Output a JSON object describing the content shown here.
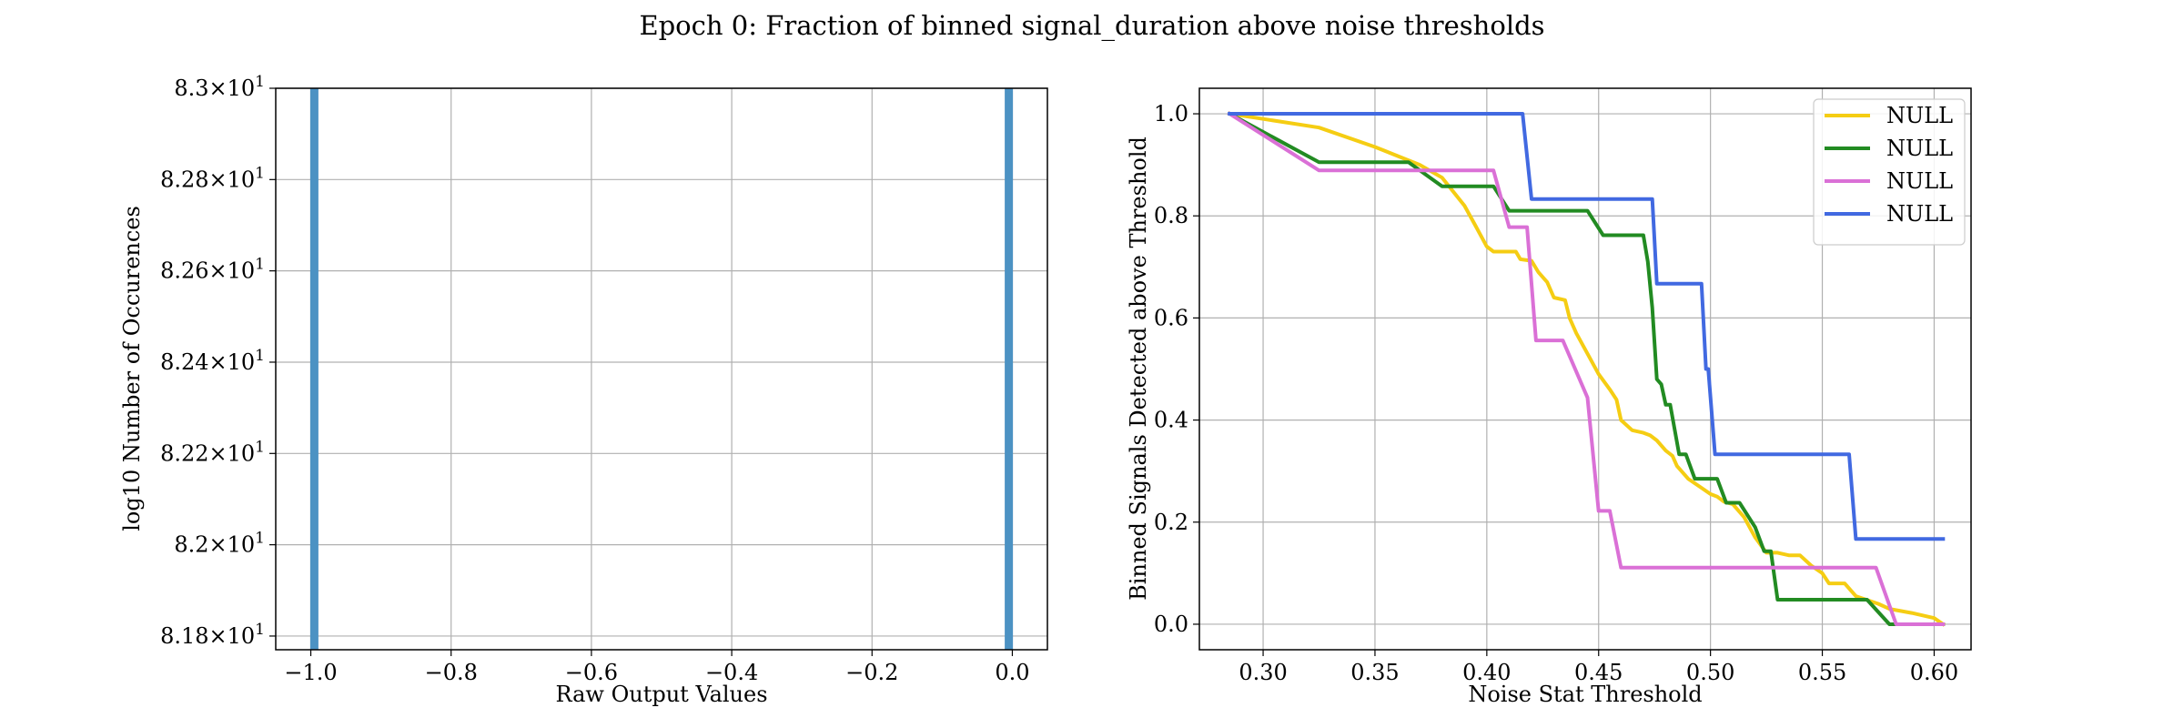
{
  "figure": {
    "title": "Epoch 0: Fraction of binned signal_duration above noise thresholds"
  },
  "chart_data": [
    {
      "type": "bar",
      "title": "",
      "xlabel": "Raw Output Values",
      "ylabel": "log10 Number of Occurences",
      "yscale": "log",
      "xlim": [
        -1.05,
        0.05
      ],
      "ylim": [
        81.77,
        83.0
      ],
      "grid": true,
      "x_ticks": [
        {
          "value": -1.0,
          "label": "−1.0"
        },
        {
          "value": -0.8,
          "label": "−0.8"
        },
        {
          "value": -0.6,
          "label": "−0.6"
        },
        {
          "value": -0.4,
          "label": "−0.4"
        },
        {
          "value": -0.2,
          "label": "−0.2"
        },
        {
          "value": 0.0,
          "label": "0.0"
        }
      ],
      "y_ticks": [
        {
          "value": 81.8,
          "mantissa": "8.18",
          "base": "10",
          "exp": "1"
        },
        {
          "value": 82.0,
          "mantissa": "8.2",
          "base": "10",
          "exp": "1"
        },
        {
          "value": 82.2,
          "mantissa": "8.22",
          "base": "10",
          "exp": "1"
        },
        {
          "value": 82.4,
          "mantissa": "8.24",
          "base": "10",
          "exp": "1"
        },
        {
          "value": 82.6,
          "mantissa": "8.26",
          "base": "10",
          "exp": "1"
        },
        {
          "value": 82.8,
          "mantissa": "8.28",
          "base": "10",
          "exp": "1"
        },
        {
          "value": 83.0,
          "mantissa": "8.3",
          "base": "10",
          "exp": "1"
        }
      ],
      "bars": [
        {
          "x": -0.995,
          "value": 83
        },
        {
          "x": -0.005,
          "value": 83
        }
      ],
      "bar_color": "#4c92c3"
    },
    {
      "type": "line",
      "title": "",
      "xlabel": "Noise Stat Threshold",
      "ylabel": "Binned Signals Detected above Threshold",
      "xlim": [
        0.2715,
        0.6165
      ],
      "ylim": [
        -0.05,
        1.05
      ],
      "grid": true,
      "legend": "top-right",
      "x_ticks": [
        {
          "value": 0.3,
          "label": "0.30"
        },
        {
          "value": 0.35,
          "label": "0.35"
        },
        {
          "value": 0.4,
          "label": "0.40"
        },
        {
          "value": 0.45,
          "label": "0.45"
        },
        {
          "value": 0.5,
          "label": "0.50"
        },
        {
          "value": 0.55,
          "label": "0.55"
        },
        {
          "value": 0.6,
          "label": "0.60"
        }
      ],
      "y_ticks": [
        {
          "value": 0.0,
          "label": "0.0"
        },
        {
          "value": 0.2,
          "label": "0.2"
        },
        {
          "value": 0.4,
          "label": "0.4"
        },
        {
          "value": 0.6,
          "label": "0.6"
        },
        {
          "value": 0.8,
          "label": "0.8"
        },
        {
          "value": 1.0,
          "label": "1.0"
        }
      ],
      "series": [
        {
          "name": "NULL",
          "color": "#f5cd13",
          "points": [
            [
              0.285,
              1.0
            ],
            [
              0.3,
              0.99
            ],
            [
              0.325,
              0.973
            ],
            [
              0.35,
              0.935
            ],
            [
              0.37,
              0.9
            ],
            [
              0.38,
              0.875
            ],
            [
              0.39,
              0.82
            ],
            [
              0.395,
              0.78
            ],
            [
              0.4,
              0.74
            ],
            [
              0.403,
              0.73
            ],
            [
              0.413,
              0.73
            ],
            [
              0.415,
              0.715
            ],
            [
              0.42,
              0.712
            ],
            [
              0.423,
              0.69
            ],
            [
              0.427,
              0.67
            ],
            [
              0.43,
              0.64
            ],
            [
              0.435,
              0.635
            ],
            [
              0.437,
              0.6
            ],
            [
              0.44,
              0.57
            ],
            [
              0.445,
              0.53
            ],
            [
              0.45,
              0.49
            ],
            [
              0.455,
              0.46
            ],
            [
              0.458,
              0.44
            ],
            [
              0.46,
              0.4
            ],
            [
              0.465,
              0.38
            ],
            [
              0.47,
              0.375
            ],
            [
              0.473,
              0.37
            ],
            [
              0.476,
              0.36
            ],
            [
              0.48,
              0.34
            ],
            [
              0.483,
              0.33
            ],
            [
              0.485,
              0.31
            ],
            [
              0.49,
              0.285
            ],
            [
              0.495,
              0.27
            ],
            [
              0.5,
              0.255
            ],
            [
              0.503,
              0.25
            ],
            [
              0.506,
              0.24
            ],
            [
              0.51,
              0.235
            ],
            [
              0.515,
              0.21
            ],
            [
              0.52,
              0.17
            ],
            [
              0.525,
              0.14
            ],
            [
              0.53,
              0.14
            ],
            [
              0.535,
              0.135
            ],
            [
              0.54,
              0.135
            ],
            [
              0.545,
              0.115
            ],
            [
              0.55,
              0.1
            ],
            [
              0.553,
              0.08
            ],
            [
              0.56,
              0.08
            ],
            [
              0.565,
              0.055
            ],
            [
              0.575,
              0.04
            ],
            [
              0.58,
              0.03
            ],
            [
              0.59,
              0.022
            ],
            [
              0.6,
              0.012
            ],
            [
              0.604,
              0.0
            ]
          ]
        },
        {
          "name": "NULL",
          "color": "#228b22",
          "points": [
            [
              0.285,
              1.0
            ],
            [
              0.325,
              0.905
            ],
            [
              0.365,
              0.905
            ],
            [
              0.38,
              0.858
            ],
            [
              0.403,
              0.858
            ],
            [
              0.41,
              0.81
            ],
            [
              0.445,
              0.81
            ],
            [
              0.452,
              0.762
            ],
            [
              0.47,
              0.762
            ],
            [
              0.472,
              0.71
            ],
            [
              0.474,
              0.62
            ],
            [
              0.476,
              0.48
            ],
            [
              0.478,
              0.47
            ],
            [
              0.48,
              0.43
            ],
            [
              0.482,
              0.43
            ],
            [
              0.486,
              0.333
            ],
            [
              0.489,
              0.333
            ],
            [
              0.493,
              0.285
            ],
            [
              0.503,
              0.285
            ],
            [
              0.507,
              0.238
            ],
            [
              0.513,
              0.238
            ],
            [
              0.52,
              0.19
            ],
            [
              0.524,
              0.143
            ],
            [
              0.527,
              0.143
            ],
            [
              0.53,
              0.048
            ],
            [
              0.57,
              0.048
            ],
            [
              0.58,
              0.0
            ],
            [
              0.604,
              0.0
            ]
          ]
        },
        {
          "name": "NULL",
          "color": "#da70d6",
          "points": [
            [
              0.285,
              1.0
            ],
            [
              0.325,
              0.889
            ],
            [
              0.403,
              0.889
            ],
            [
              0.41,
              0.778
            ],
            [
              0.418,
              0.778
            ],
            [
              0.422,
              0.556
            ],
            [
              0.434,
              0.556
            ],
            [
              0.445,
              0.444
            ],
            [
              0.45,
              0.222
            ],
            [
              0.455,
              0.222
            ],
            [
              0.46,
              0.111
            ],
            [
              0.574,
              0.111
            ],
            [
              0.583,
              0.0
            ],
            [
              0.604,
              0.0
            ]
          ]
        },
        {
          "name": "NULL",
          "color": "#4169e1",
          "points": [
            [
              0.285,
              1.0
            ],
            [
              0.416,
              1.0
            ],
            [
              0.42,
              0.833
            ],
            [
              0.474,
              0.833
            ],
            [
              0.476,
              0.667
            ],
            [
              0.496,
              0.667
            ],
            [
              0.498,
              0.5
            ],
            [
              0.499,
              0.5
            ],
            [
              0.502,
              0.333
            ],
            [
              0.562,
              0.333
            ],
            [
              0.565,
              0.167
            ],
            [
              0.604,
              0.167
            ]
          ]
        }
      ]
    }
  ]
}
